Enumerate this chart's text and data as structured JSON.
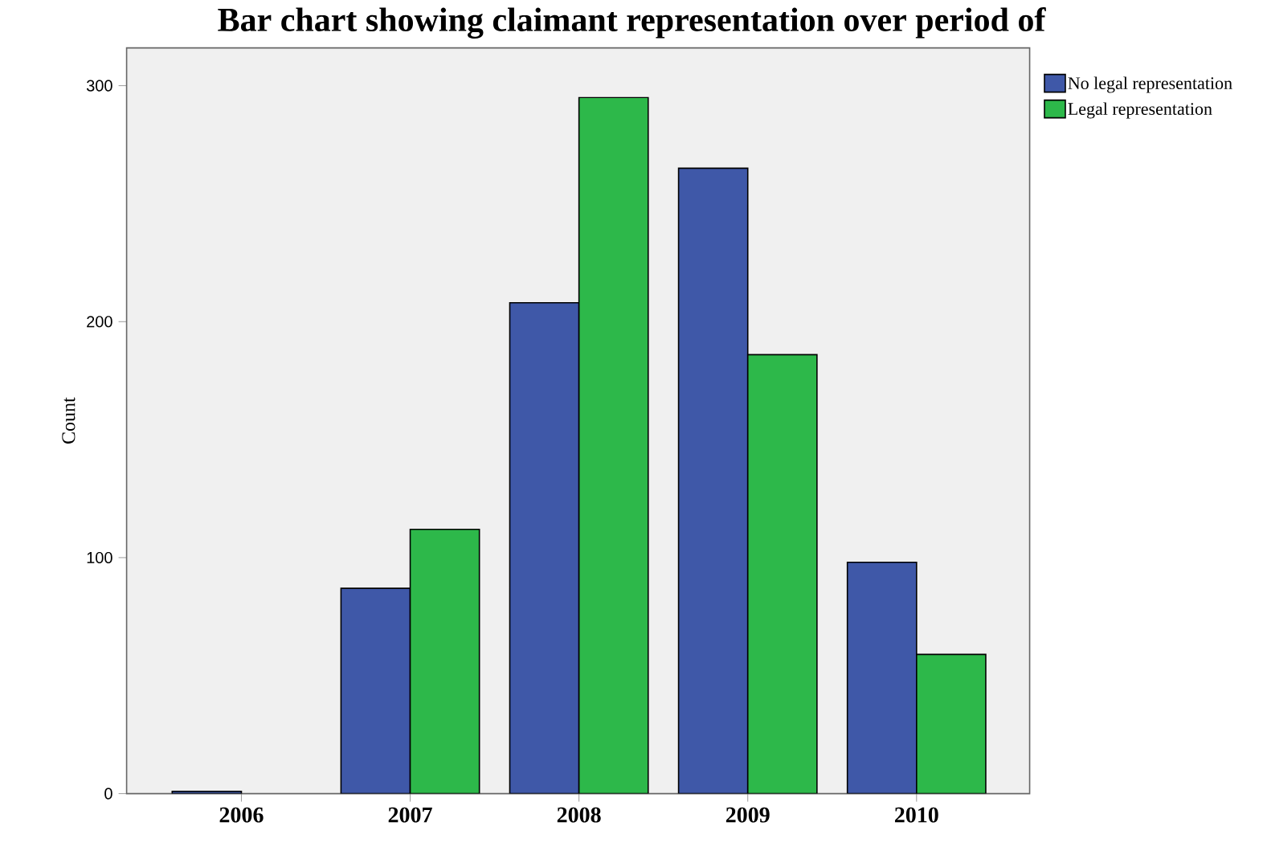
{
  "chart_data": {
    "type": "bar",
    "title": "Bar chart showing claimant representation over period of",
    "ylabel": "Count",
    "categories": [
      "2006",
      "2007",
      "2008",
      "2009",
      "2010"
    ],
    "series": [
      {
        "name": "No legal representation",
        "color": "#3f58a8",
        "values": [
          1,
          87,
          208,
          265,
          98
        ]
      },
      {
        "name": "Legal representation",
        "color": "#2db84a",
        "values": [
          null,
          112,
          295,
          186,
          59
        ]
      }
    ],
    "ylim": [
      0,
      316
    ],
    "yticks": [
      0,
      100,
      200,
      300
    ],
    "grid": false,
    "legend": "top right"
  }
}
